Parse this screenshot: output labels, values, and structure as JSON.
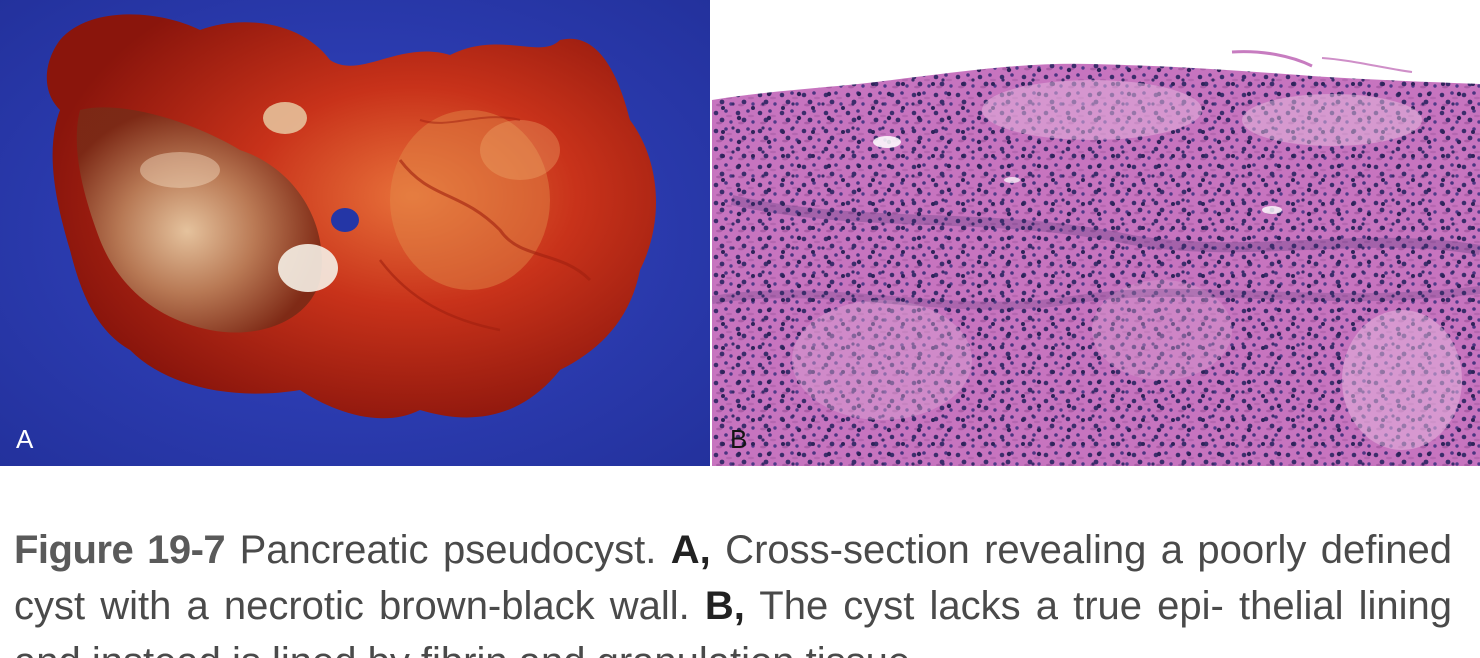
{
  "figure": {
    "panel_a": {
      "letter": "A",
      "colors": {
        "background": "#2a3fb5",
        "tissue": "#b81e10",
        "highlight": "#f0e6d8"
      }
    },
    "panel_b": {
      "letter": "B",
      "colors": {
        "background": "#ffffff",
        "stroma": "#c76fbf",
        "nuclei": "#3b2d6b"
      }
    },
    "caption": {
      "label": "Figure 19-7",
      "lead": " Pancreatic pseudocyst. ",
      "part_a_label": "A,",
      "part_a_text": " Cross-section revealing a poorly defined cyst with a necrotic brown-black wall. ",
      "part_b_label": "B,",
      "part_b_text": " The cyst lacks a true epi- thelial lining and instead is lined by fibrin and granulation tissue."
    }
  }
}
